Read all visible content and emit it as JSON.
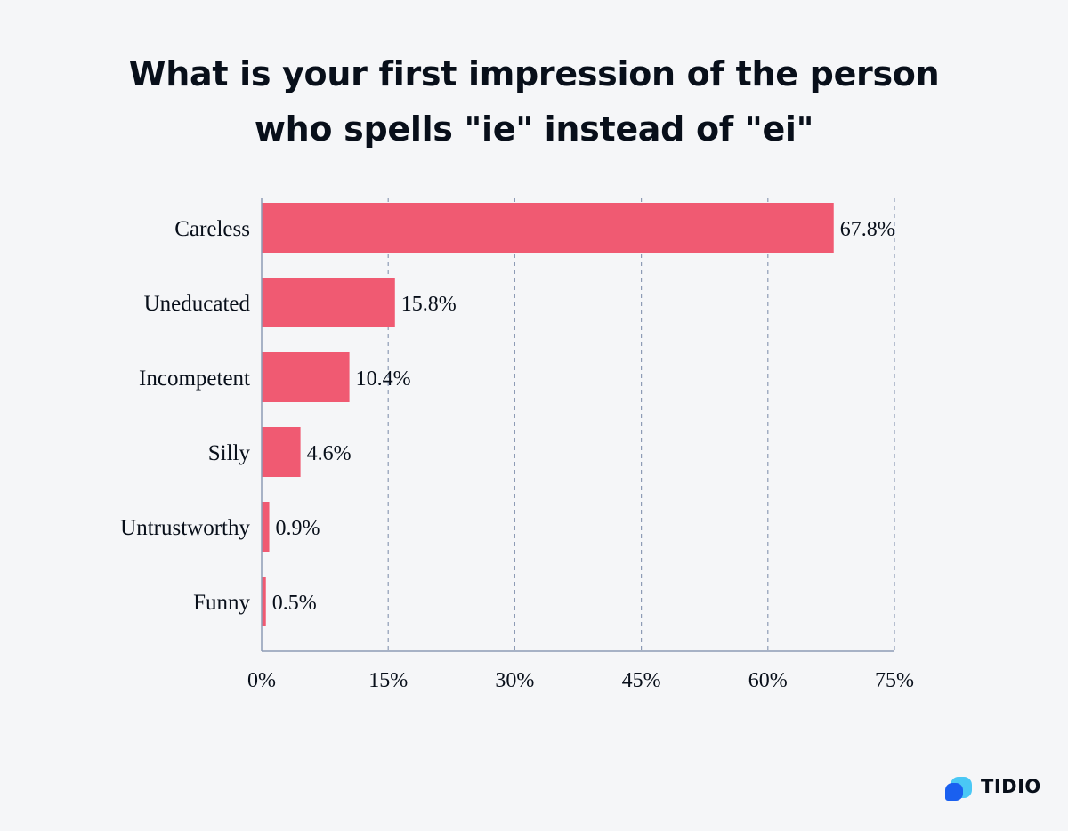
{
  "chart_data": {
    "type": "bar",
    "orientation": "horizontal",
    "title_lines": [
      "What is your first impression of the person",
      "who spells \"ie\" instead of \"ei\""
    ],
    "categories": [
      "Careless",
      "Uneducated",
      "Incompetent",
      "Silly",
      "Untrustworthy",
      "Funny"
    ],
    "values": [
      67.8,
      15.8,
      10.4,
      4.6,
      0.9,
      0.5
    ],
    "value_labels": [
      "67.8%",
      "15.8%",
      "10.4%",
      "4.6%",
      "0.9%",
      "0.5%"
    ],
    "xlim": [
      0,
      75
    ],
    "x_ticks": [
      0,
      15,
      30,
      45,
      60,
      75
    ],
    "x_tick_labels": [
      "0%",
      "15%",
      "30%",
      "45%",
      "60%",
      "75%"
    ],
    "grid": "vertical dashed",
    "bar_color": "#f05a72"
  },
  "brand": {
    "name": "TIDIO",
    "logo_color_dark": "#1a60f0",
    "logo_color_light": "#4ac8f5"
  }
}
